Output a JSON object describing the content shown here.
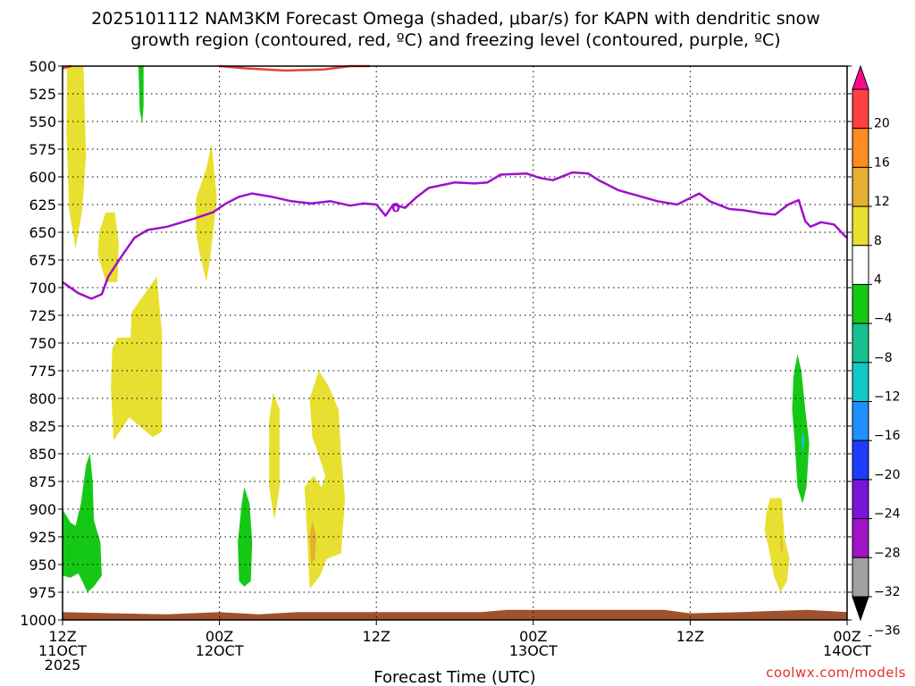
{
  "chart_data": {
    "type": "heatmap",
    "title_line1": "2025101112 NAM3KM Forecast Omega (shaded, μbar/s) for KAPN with dendritic snow",
    "title_line2": "growth region (contoured, red, ºC) and freezing level (contoured, purple, ºC)",
    "xlabel": "Forecast Time (UTC)",
    "credit": "coolwx.com/models",
    "x_unit": "forecast hour",
    "xlim": [
      0,
      60
    ],
    "x_ticks": [
      {
        "x": 0,
        "hour": "12Z",
        "day": "11OCT",
        "year": "2025"
      },
      {
        "x": 12,
        "hour": "00Z",
        "day": "12OCT",
        "year": ""
      },
      {
        "x": 24,
        "hour": "12Z",
        "day": "",
        "year": ""
      },
      {
        "x": 36,
        "hour": "00Z",
        "day": "13OCT",
        "year": ""
      },
      {
        "x": 48,
        "hour": "12Z",
        "day": "",
        "year": ""
      },
      {
        "x": 60,
        "hour": "00Z",
        "day": "14OCT",
        "year": ""
      }
    ],
    "y_unit": "hPa",
    "ylim": [
      500,
      1000
    ],
    "y_ticks": [
      500,
      525,
      550,
      575,
      600,
      625,
      650,
      675,
      700,
      725,
      750,
      775,
      800,
      825,
      850,
      875,
      900,
      925,
      950,
      975,
      1000
    ],
    "colorbar": {
      "labels": [
        "20",
        "16",
        "12",
        "8",
        "4",
        "−4",
        "−8",
        "−12",
        "−16",
        "−20",
        "−24",
        "−28",
        "−32",
        "−36"
      ],
      "colors": [
        "#ff0a8c",
        "#ff4040",
        "#ff8c20",
        "#e6b030",
        "#e8e030",
        "#ffffff",
        "#16c816",
        "#18c090",
        "#12c8c8",
        "#1e90ff",
        "#1e3cff",
        "#7a14d8",
        "#a014c8",
        "#a0a0a0",
        "#000000"
      ]
    },
    "freezing_level": {
      "label": "0",
      "label_x": 25.5,
      "label_p": 627,
      "color": "#a010c8",
      "points": [
        [
          0,
          695
        ],
        [
          1.2,
          705
        ],
        [
          2.2,
          710
        ],
        [
          3,
          706
        ],
        [
          3.5,
          690
        ],
        [
          4.5,
          672
        ],
        [
          5.5,
          655
        ],
        [
          6.5,
          648
        ],
        [
          8,
          645
        ],
        [
          10,
          638
        ],
        [
          11.5,
          632
        ],
        [
          12.5,
          624
        ],
        [
          13.5,
          618
        ],
        [
          14.5,
          615
        ],
        [
          16,
          618
        ],
        [
          17.5,
          622
        ],
        [
          19,
          624
        ],
        [
          20.5,
          622
        ],
        [
          22,
          626
        ],
        [
          23,
          624
        ],
        [
          24,
          625
        ],
        [
          24.7,
          635
        ],
        [
          25.3,
          625
        ],
        [
          26.2,
          628
        ],
        [
          27,
          619
        ],
        [
          28,
          610
        ],
        [
          30,
          605
        ],
        [
          31.5,
          606
        ],
        [
          32.5,
          605
        ],
        [
          33.5,
          598
        ],
        [
          35.5,
          597
        ],
        [
          36.5,
          601
        ],
        [
          37.5,
          603
        ],
        [
          39,
          596
        ],
        [
          40.2,
          597
        ],
        [
          41,
          603
        ],
        [
          42.5,
          612
        ],
        [
          44,
          617
        ],
        [
          45.5,
          622
        ],
        [
          47,
          625
        ],
        [
          48.2,
          618
        ],
        [
          48.7,
          615
        ],
        [
          49.5,
          622
        ],
        [
          51,
          629
        ],
        [
          52,
          630
        ],
        [
          53.5,
          633
        ],
        [
          54.5,
          634
        ],
        [
          55.5,
          625
        ],
        [
          56.3,
          621
        ],
        [
          56.8,
          640
        ],
        [
          57.2,
          645
        ],
        [
          58,
          641
        ],
        [
          59,
          643
        ],
        [
          59.8,
          653
        ],
        [
          60,
          655
        ]
      ]
    },
    "dgz_contour": {
      "color": "#e84040",
      "segments": [
        [
          [
            0,
            502
          ],
          [
            0.7,
            495
          ]
        ],
        [
          [
            12,
            495
          ],
          [
            14,
            502
          ],
          [
            17,
            504
          ],
          [
            20,
            503
          ],
          [
            22,
            500
          ],
          [
            23.5,
            496
          ]
        ]
      ]
    },
    "surface": {
      "color": "#a0522d",
      "points": [
        [
          0,
          993
        ],
        [
          4,
          994
        ],
        [
          8,
          995
        ],
        [
          12,
          993
        ],
        [
          15,
          995
        ],
        [
          18,
          993
        ],
        [
          24,
          993
        ],
        [
          32,
          993
        ],
        [
          34,
          991
        ],
        [
          37,
          991
        ],
        [
          40,
          991
        ],
        [
          46,
          991
        ],
        [
          48,
          994
        ],
        [
          52,
          993
        ],
        [
          54,
          992
        ],
        [
          57,
          991
        ],
        [
          60,
          993
        ]
      ]
    },
    "omega_regions": [
      {
        "color": "#e8e030",
        "points": [
          [
            0.35,
            495
          ],
          [
            1.6,
            495
          ],
          [
            1.8,
            580
          ],
          [
            1.5,
            630
          ],
          [
            1.0,
            665
          ],
          [
            0.5,
            630
          ],
          [
            0.3,
            560
          ]
        ]
      },
      {
        "color": "#e8e030",
        "points": [
          [
            2.8,
            650
          ],
          [
            3.3,
            632
          ],
          [
            4.0,
            632
          ],
          [
            4.3,
            660
          ],
          [
            4.2,
            695
          ],
          [
            3.3,
            695
          ],
          [
            2.7,
            670
          ]
        ]
      },
      {
        "color": "#e8e030",
        "points": [
          [
            3.8,
            755
          ],
          [
            4.2,
            745
          ],
          [
            5.2,
            745
          ],
          [
            5.3,
            722
          ],
          [
            7.2,
            690
          ],
          [
            7.6,
            740
          ],
          [
            7.6,
            830
          ],
          [
            6.9,
            835
          ],
          [
            5.9,
            825
          ],
          [
            5.1,
            817
          ],
          [
            3.9,
            838
          ],
          [
            3.7,
            790
          ]
        ]
      },
      {
        "color": "#e8e030",
        "points": [
          [
            10.2,
            620
          ],
          [
            11.0,
            592
          ],
          [
            11.4,
            570
          ],
          [
            11.8,
            620
          ],
          [
            11.3,
            672
          ],
          [
            11.0,
            695
          ],
          [
            10.5,
            670
          ],
          [
            10.2,
            650
          ]
        ]
      },
      {
        "color": "#e8e030",
        "points": [
          [
            15.8,
            820
          ],
          [
            16.1,
            795
          ],
          [
            16.6,
            810
          ],
          [
            16.6,
            880
          ],
          [
            16.2,
            910
          ],
          [
            15.8,
            880
          ]
        ]
      },
      {
        "color": "#e8e030",
        "points": [
          [
            18.9,
            800
          ],
          [
            19.6,
            775
          ],
          [
            20.4,
            790
          ],
          [
            21.1,
            810
          ],
          [
            21.3,
            850
          ],
          [
            21.6,
            890
          ],
          [
            21.3,
            940
          ],
          [
            20.2,
            945
          ],
          [
            19.7,
            960
          ],
          [
            18.9,
            972
          ],
          [
            18.7,
            920
          ],
          [
            18.5,
            880
          ],
          [
            19.2,
            870
          ],
          [
            19.8,
            880
          ],
          [
            20.1,
            870
          ],
          [
            19.5,
            848
          ],
          [
            19.1,
            835
          ]
        ]
      },
      {
        "color": "#e8e030",
        "points": [
          [
            53.8,
            905
          ],
          [
            54.1,
            890
          ],
          [
            55.0,
            890
          ],
          [
            55.2,
            925
          ],
          [
            55.6,
            945
          ],
          [
            55.4,
            965
          ],
          [
            54.9,
            975
          ],
          [
            54.4,
            960
          ],
          [
            54.0,
            935
          ],
          [
            53.7,
            920
          ]
        ]
      },
      {
        "color": "#e6b030",
        "points": [
          [
            18.9,
            925
          ],
          [
            19.1,
            910
          ],
          [
            19.4,
            925
          ],
          [
            19.3,
            945
          ],
          [
            19.0,
            950
          ]
        ]
      },
      {
        "color": "#e6b030",
        "points": [
          [
            54.9,
            930
          ],
          [
            55.0,
            925
          ],
          [
            55.1,
            935
          ],
          [
            55.0,
            942
          ]
        ]
      },
      {
        "color": "#16c816",
        "points": [
          [
            5.8,
            498
          ],
          [
            6.2,
            498
          ],
          [
            6.2,
            535
          ],
          [
            6.1,
            552
          ],
          [
            5.9,
            540
          ]
        ]
      },
      {
        "color": "#16c816",
        "points": [
          [
            0,
            900
          ],
          [
            0.6,
            912
          ],
          [
            1.0,
            915
          ],
          [
            1.4,
            895
          ],
          [
            1.8,
            860
          ],
          [
            2.1,
            850
          ],
          [
            2.3,
            875
          ],
          [
            2.4,
            910
          ],
          [
            2.9,
            930
          ],
          [
            3.0,
            960
          ],
          [
            2.4,
            970
          ],
          [
            1.9,
            975
          ],
          [
            1.5,
            965
          ],
          [
            1.2,
            958
          ],
          [
            0.6,
            962
          ],
          [
            0,
            960
          ]
        ]
      },
      {
        "color": "#16c816",
        "points": [
          [
            13.4,
            930
          ],
          [
            13.7,
            895
          ],
          [
            13.9,
            880
          ],
          [
            14.3,
            895
          ],
          [
            14.5,
            930
          ],
          [
            14.4,
            965
          ],
          [
            13.9,
            970
          ],
          [
            13.5,
            965
          ]
        ]
      },
      {
        "color": "#16c816",
        "points": [
          [
            55.9,
            780
          ],
          [
            56.2,
            760
          ],
          [
            56.5,
            775
          ],
          [
            56.8,
            810
          ],
          [
            57.1,
            840
          ],
          [
            56.9,
            880
          ],
          [
            56.6,
            895
          ],
          [
            56.2,
            880
          ],
          [
            56.0,
            840
          ],
          [
            55.8,
            810
          ]
        ]
      },
      {
        "color": "#12c8c8",
        "points": [
          [
            56.5,
            835
          ],
          [
            56.65,
            830
          ],
          [
            56.75,
            840
          ],
          [
            56.6,
            850
          ]
        ]
      }
    ]
  }
}
